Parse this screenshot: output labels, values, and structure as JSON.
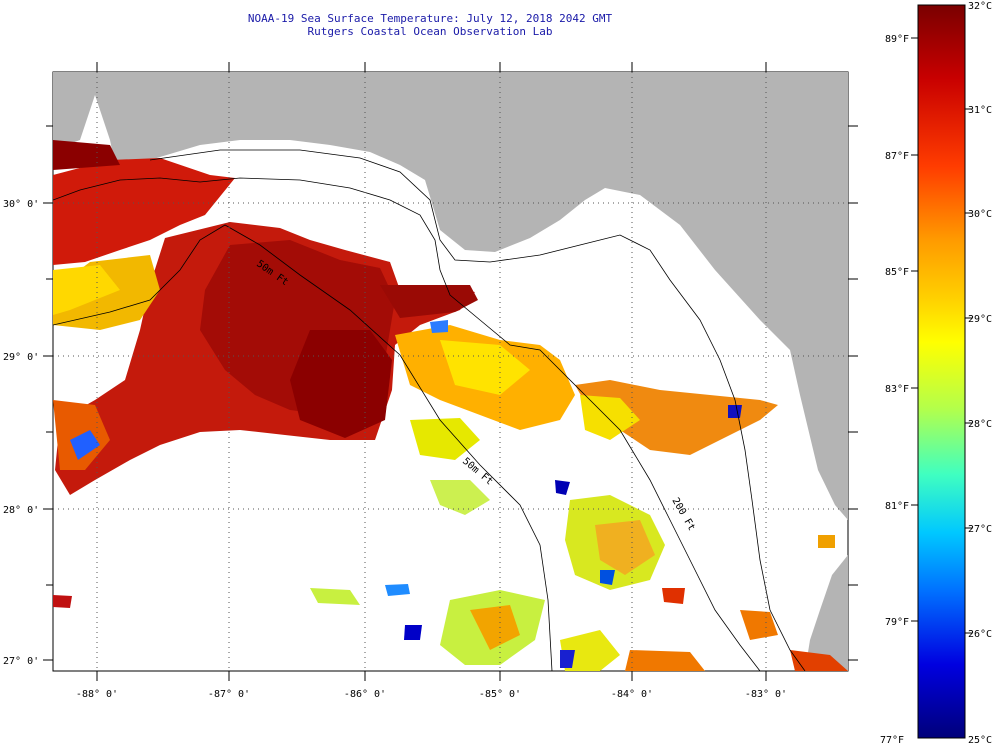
{
  "header": {
    "title": "NOAA-19 Sea Surface Temperature:  July 12, 2018 2042 GMT",
    "subtitle": "Rutgers Coastal Ocean Observation Lab"
  },
  "map": {
    "lat_labels": [
      "30° 0'",
      "29° 0'",
      "28° 0'",
      "27° 0'"
    ],
    "lon_labels": [
      "-88° 0'",
      "-87° 0'",
      "-86° 0'",
      "-85° 0'",
      "-84° 0'",
      "-83° 0'"
    ],
    "contour_labels": [
      "50m Ft",
      "50m Ft",
      "200 Ft"
    ]
  },
  "colorbar": {
    "celsius": [
      "32°C",
      "31°C",
      "30°C",
      "29°C",
      "28°C",
      "27°C",
      "26°C",
      "25°C"
    ],
    "fahrenheit": [
      "89°F",
      "87°F",
      "85°F",
      "83°F",
      "81°F",
      "79°F",
      "77°F"
    ],
    "min_c": 25,
    "max_c": 32
  },
  "colors": {
    "land": "#b4b4b4",
    "hot": "#8b0000",
    "title": "#1a1aa8"
  }
}
